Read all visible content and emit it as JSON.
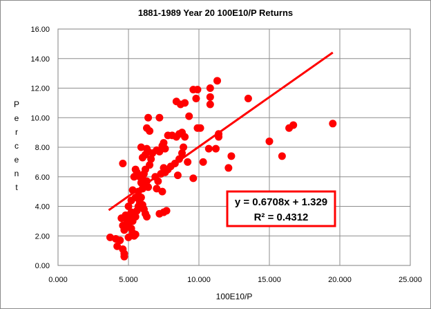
{
  "chart_data": {
    "type": "scatter",
    "title": "1881-1989 Year 20 100E10/P Returns",
    "xlabel": "100E10/P",
    "ylabel": "Percent",
    "xlim": [
      0,
      25
    ],
    "ylim": [
      0,
      16
    ],
    "x_ticks": [
      "0.000",
      "5.000",
      "10.000",
      "15.000",
      "20.000",
      "25.000"
    ],
    "y_ticks": [
      "0.00",
      "2.00",
      "4.00",
      "6.00",
      "8.00",
      "10.00",
      "12.00",
      "14.00",
      "16.00"
    ],
    "grid": "vertical-and-horizontal",
    "marker_color": "#ff0000",
    "trendline": {
      "slope": 0.6708,
      "intercept": 1.329,
      "x_range": [
        3.6,
        19.5
      ],
      "color": "#ff0000"
    },
    "annotation": {
      "equation": "y = 0.6708x + 1.329",
      "r_squared": "R² = 0.4312",
      "border_color": "#ff0000"
    },
    "points": [
      [
        3.7,
        1.9
      ],
      [
        4.1,
        1.8
      ],
      [
        4.2,
        1.3
      ],
      [
        4.4,
        1.7
      ],
      [
        4.6,
        1.1
      ],
      [
        4.7,
        0.8
      ],
      [
        4.7,
        0.6
      ],
      [
        4.6,
        6.9
      ],
      [
        4.5,
        3.2
      ],
      [
        4.6,
        2.7
      ],
      [
        4.7,
        2.4
      ],
      [
        4.8,
        3.4
      ],
      [
        4.9,
        3.0
      ],
      [
        5.0,
        2.7
      ],
      [
        5.1,
        3.3
      ],
      [
        5.2,
        3.6
      ],
      [
        5.3,
        2.2
      ],
      [
        5.4,
        2.0
      ],
      [
        5.5,
        2.1
      ],
      [
        5.3,
        3.0
      ],
      [
        5.2,
        2.5
      ],
      [
        5.4,
        3.4
      ],
      [
        5.5,
        3.3
      ],
      [
        5.0,
        1.9
      ],
      [
        5.6,
        3.7
      ],
      [
        5.7,
        4.0
      ],
      [
        5.8,
        4.3
      ],
      [
        5.9,
        4.6
      ],
      [
        6.0,
        4.1
      ],
      [
        6.1,
        3.8
      ],
      [
        6.2,
        3.5
      ],
      [
        6.3,
        3.3
      ],
      [
        5.4,
        6.0
      ],
      [
        5.5,
        6.5
      ],
      [
        5.6,
        6.3
      ],
      [
        5.8,
        6.0
      ],
      [
        5.9,
        5.6
      ],
      [
        6.0,
        5.2
      ],
      [
        5.7,
        5.0
      ],
      [
        5.5,
        4.6
      ],
      [
        5.3,
        5.1
      ],
      [
        5.2,
        4.4
      ],
      [
        5.0,
        4.0
      ],
      [
        6.0,
        5.9
      ],
      [
        6.1,
        6.2
      ],
      [
        6.2,
        6.5
      ],
      [
        6.3,
        5.7
      ],
      [
        6.4,
        5.3
      ],
      [
        6.5,
        6.8
      ],
      [
        6.6,
        7.2
      ],
      [
        6.7,
        7.6
      ],
      [
        6.4,
        7.7
      ],
      [
        6.3,
        7.9
      ],
      [
        6.2,
        7.5
      ],
      [
        6.0,
        7.3
      ],
      [
        5.9,
        8.0
      ],
      [
        6.9,
        6.0
      ],
      [
        7.1,
        5.7
      ],
      [
        7.0,
        5.2
      ],
      [
        7.3,
        6.2
      ],
      [
        7.5,
        6.6
      ],
      [
        7.6,
        6.3
      ],
      [
        7.2,
        7.7
      ],
      [
        7.0,
        7.8
      ],
      [
        7.4,
        8.1
      ],
      [
        7.6,
        7.9
      ],
      [
        7.5,
        8.3
      ],
      [
        7.8,
        8.8
      ],
      [
        8.1,
        8.8
      ],
      [
        8.4,
        8.7
      ],
      [
        8.6,
        8.9
      ],
      [
        8.8,
        9.0
      ],
      [
        6.4,
        10.0
      ],
      [
        7.2,
        10.0
      ],
      [
        6.3,
        9.3
      ],
      [
        6.5,
        9.1
      ],
      [
        8.4,
        11.1
      ],
      [
        8.7,
        10.9
      ],
      [
        9.0,
        11.0
      ],
      [
        9.3,
        10.1
      ],
      [
        9.6,
        11.9
      ],
      [
        9.9,
        11.9
      ],
      [
        9.8,
        11.3
      ],
      [
        9.9,
        9.3
      ],
      [
        10.1,
        9.3
      ],
      [
        9.0,
        8.7
      ],
      [
        8.9,
        8.0
      ],
      [
        8.8,
        7.6
      ],
      [
        8.6,
        7.2
      ],
      [
        9.2,
        7.0
      ],
      [
        8.3,
        6.9
      ],
      [
        8.0,
        6.7
      ],
      [
        7.8,
        6.5
      ],
      [
        8.5,
        6.1
      ],
      [
        9.6,
        5.9
      ],
      [
        7.4,
        5.0
      ],
      [
        7.2,
        3.5
      ],
      [
        7.5,
        3.6
      ],
      [
        7.7,
        3.7
      ],
      [
        10.3,
        7.0
      ],
      [
        10.7,
        7.9
      ],
      [
        11.2,
        7.9
      ],
      [
        11.4,
        8.7
      ],
      [
        11.4,
        8.9
      ],
      [
        10.8,
        10.9
      ],
      [
        10.8,
        11.4
      ],
      [
        10.8,
        12.0
      ],
      [
        11.3,
        12.5
      ],
      [
        12.1,
        6.6
      ],
      [
        12.3,
        7.4
      ],
      [
        13.5,
        11.3
      ],
      [
        15.0,
        8.4
      ],
      [
        15.9,
        7.4
      ],
      [
        16.4,
        9.3
      ],
      [
        16.7,
        9.5
      ],
      [
        19.5,
        9.6
      ]
    ]
  }
}
